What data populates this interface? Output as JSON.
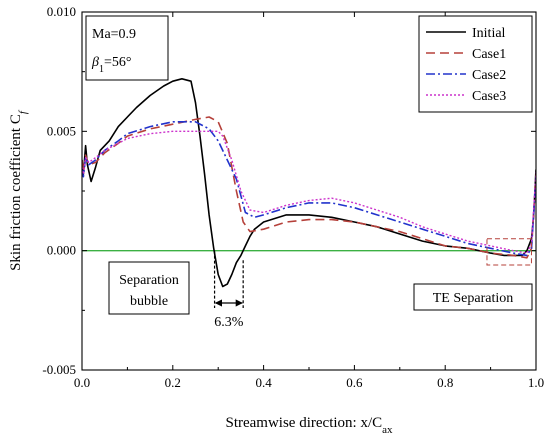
{
  "chart_data": {
    "type": "line",
    "xlabel": "Streamwise direction: x/C",
    "xlabel_sub": "ax",
    "ylabel": "Skin friction coefficient C",
    "ylabel_sub": "f",
    "xlim": [
      0.0,
      1.0
    ],
    "ylim": [
      -0.005,
      0.01
    ],
    "x_ticks": [
      {
        "value": 0.0,
        "label": "0.0"
      },
      {
        "value": 0.2,
        "label": "0.2"
      },
      {
        "value": 0.4,
        "label": "0.4"
      },
      {
        "value": 0.6,
        "label": "0.6"
      },
      {
        "value": 0.8,
        "label": "0.8"
      },
      {
        "value": 1.0,
        "label": "1.0"
      }
    ],
    "y_ticks": [
      {
        "value": -0.005,
        "label": "-0.005"
      },
      {
        "value": 0.0,
        "label": "0.000"
      },
      {
        "value": 0.005,
        "label": "0.005"
      },
      {
        "value": 0.01,
        "label": "0.010"
      }
    ],
    "conditions": {
      "mach": "Ma=0.9",
      "angle_symbol": "β",
      "angle_sub": "1",
      "angle_value": "=56°"
    },
    "legend_placement": "top-right",
    "reference_line": {
      "y": 0.0,
      "color": "#3cb043"
    },
    "annotations": {
      "separation_bubble_line1": "Separation",
      "separation_bubble_line2": "bubble",
      "bubble_span": "6.3%",
      "bubble_x_start": 0.292,
      "bubble_x_end": 0.355,
      "te_separation": "TE Separation",
      "te_box_x": [
        0.892,
        0.99
      ],
      "te_box_y": [
        -0.0006,
        0.0005
      ]
    },
    "series": [
      {
        "name": "Initial",
        "color": "#000000",
        "dash": "",
        "width": 1.6,
        "x": [
          0.0,
          0.003,
          0.008,
          0.012,
          0.02,
          0.03,
          0.04,
          0.06,
          0.08,
          0.1,
          0.12,
          0.15,
          0.18,
          0.2,
          0.22,
          0.24,
          0.25,
          0.26,
          0.27,
          0.28,
          0.29,
          0.3,
          0.31,
          0.32,
          0.33,
          0.34,
          0.35,
          0.36,
          0.37,
          0.38,
          0.4,
          0.45,
          0.5,
          0.55,
          0.6,
          0.65,
          0.7,
          0.75,
          0.8,
          0.85,
          0.9,
          0.93,
          0.95,
          0.97,
          0.98,
          0.99,
          0.995,
          1.0
        ],
        "y": [
          0.0038,
          0.0032,
          0.0044,
          0.0036,
          0.0029,
          0.0035,
          0.0042,
          0.0046,
          0.0052,
          0.0056,
          0.006,
          0.0065,
          0.0069,
          0.0071,
          0.0072,
          0.0071,
          0.0062,
          0.0048,
          0.0032,
          0.0015,
          0.0001,
          -0.001,
          -0.0015,
          -0.0014,
          -0.001,
          -0.0005,
          -0.0002,
          0.0002,
          0.0006,
          0.0009,
          0.0012,
          0.0015,
          0.0015,
          0.0014,
          0.0012,
          0.001,
          0.0007,
          0.0004,
          0.0002,
          0.0001,
          -0.0001,
          -0.0002,
          -0.0002,
          -0.0002,
          0.0,
          0.0005,
          0.0015,
          0.0034
        ]
      },
      {
        "name": "Case1",
        "color": "#b5403a",
        "dash": "9,5",
        "width": 1.6,
        "x": [
          0.0,
          0.003,
          0.008,
          0.015,
          0.03,
          0.05,
          0.08,
          0.1,
          0.15,
          0.2,
          0.25,
          0.28,
          0.3,
          0.32,
          0.34,
          0.355,
          0.37,
          0.4,
          0.45,
          0.5,
          0.55,
          0.6,
          0.65,
          0.7,
          0.75,
          0.8,
          0.85,
          0.9,
          0.95,
          0.98,
          0.99,
          1.0
        ],
        "y": [
          0.0038,
          0.0033,
          0.004,
          0.0036,
          0.0037,
          0.0041,
          0.0045,
          0.0048,
          0.0051,
          0.0053,
          0.0055,
          0.0056,
          0.0054,
          0.0045,
          0.0025,
          0.0012,
          0.0008,
          0.0009,
          0.0012,
          0.0013,
          0.0013,
          0.0012,
          0.001,
          0.0008,
          0.0005,
          0.0002,
          0.0001,
          -0.0001,
          -0.0002,
          -0.0003,
          0.0001,
          0.0032
        ]
      },
      {
        "name": "Case2",
        "color": "#2233cc",
        "dash": "9,3,2,3",
        "width": 1.6,
        "x": [
          0.0,
          0.003,
          0.008,
          0.015,
          0.03,
          0.05,
          0.08,
          0.1,
          0.15,
          0.2,
          0.25,
          0.28,
          0.3,
          0.32,
          0.34,
          0.36,
          0.38,
          0.4,
          0.45,
          0.5,
          0.55,
          0.6,
          0.65,
          0.7,
          0.75,
          0.8,
          0.85,
          0.9,
          0.95,
          0.98,
          0.99,
          1.0
        ],
        "y": [
          0.0034,
          0.0031,
          0.0039,
          0.0036,
          0.0038,
          0.0042,
          0.0046,
          0.0049,
          0.0052,
          0.0054,
          0.0054,
          0.0051,
          0.0046,
          0.0038,
          0.003,
          0.0016,
          0.0014,
          0.0015,
          0.0018,
          0.002,
          0.002,
          0.0018,
          0.0015,
          0.0012,
          0.0009,
          0.0006,
          0.0003,
          0.0001,
          -0.0001,
          -0.0002,
          0.0001,
          0.0031
        ]
      },
      {
        "name": "Case3",
        "color": "#cc33cc",
        "dash": "2,2",
        "width": 1.4,
        "x": [
          0.0,
          0.003,
          0.008,
          0.015,
          0.03,
          0.05,
          0.08,
          0.1,
          0.15,
          0.2,
          0.25,
          0.28,
          0.3,
          0.31,
          0.33,
          0.35,
          0.37,
          0.4,
          0.45,
          0.5,
          0.55,
          0.6,
          0.65,
          0.7,
          0.75,
          0.8,
          0.85,
          0.9,
          0.95,
          0.98,
          0.99,
          1.0
        ],
        "y": [
          0.0035,
          0.0032,
          0.0039,
          0.0037,
          0.0039,
          0.0042,
          0.0045,
          0.0047,
          0.0049,
          0.005,
          0.005,
          0.005,
          0.005,
          0.0048,
          0.0038,
          0.0025,
          0.0017,
          0.0016,
          0.0019,
          0.0021,
          0.0022,
          0.002,
          0.0017,
          0.0014,
          0.001,
          0.0007,
          0.0004,
          0.0002,
          0.0,
          -0.0001,
          0.0003,
          0.0033
        ]
      }
    ]
  }
}
